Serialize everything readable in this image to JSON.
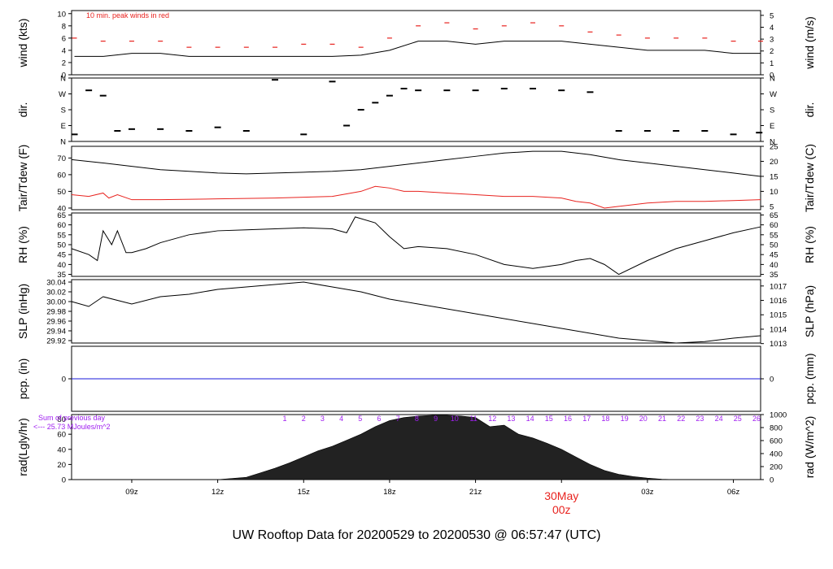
{
  "footer": {
    "title": "UW Rooftop Data for 20200529  to  20200530 @ 06:57:47  (UTC)"
  },
  "colors": {
    "black": "#000000",
    "red": "#e8231f",
    "blue": "#1a1adb",
    "purple": "#a020f0"
  },
  "chart_data": {
    "type": "line",
    "x_axis": {
      "tick_labels": [
        "09z",
        "12z",
        "15z",
        "18z",
        "21z",
        "00z",
        "03z",
        "06z"
      ],
      "tick_hours": [
        9,
        12,
        15,
        18,
        21,
        24,
        27,
        30
      ],
      "range_hours": [
        6.9,
        30.95
      ],
      "date_label": "30May",
      "date_hour_label": "00z"
    },
    "panels": [
      {
        "id": "wind",
        "ylabel": "wind (kts)",
        "ylabel_right": "wind (m/s)",
        "annotation": "10 min. peak winds in red",
        "ylim": [
          0,
          10.5
        ],
        "yticks": [
          "0",
          "2",
          "4",
          "6",
          "8",
          "10"
        ],
        "yticks_right": [
          "0",
          "1",
          "2",
          "3",
          "4",
          "5"
        ],
        "series": [
          {
            "type": "line",
            "color": "black",
            "x": [
              7,
              8,
              9,
              10,
              11,
              12,
              13,
              14,
              15,
              16,
              17,
              18,
              19,
              20,
              21,
              22,
              23,
              24,
              25,
              26,
              27,
              28,
              29,
              30,
              30.95
            ],
            "y": [
              3,
              3,
              3.5,
              3.5,
              3,
              3,
              3,
              3,
              3,
              3,
              3.2,
              4,
              5.5,
              5.5,
              5,
              5.5,
              5.5,
              5.5,
              5,
              4.5,
              4,
              4,
              4,
              3.5,
              3.5
            ]
          },
          {
            "type": "gust",
            "color": "red",
            "x": [
              7,
              8,
              9,
              10,
              11,
              12,
              13,
              14,
              15,
              16,
              17,
              18,
              19,
              20,
              21,
              22,
              23,
              24,
              25,
              26,
              27,
              28,
              29,
              30,
              30.95
            ],
            "y": [
              6,
              5.5,
              5.5,
              5.5,
              4.5,
              4.5,
              4.5,
              4.5,
              5,
              5,
              4.5,
              6,
              8,
              8.5,
              7.5,
              8,
              8.5,
              8,
              7,
              6.5,
              6,
              6,
              6,
              5.5,
              5.5
            ]
          }
        ]
      },
      {
        "id": "dir",
        "ylabel": "dir.",
        "ylabel_right": "dir.",
        "ylim": [
          0,
          360
        ],
        "yticks": [
          "N",
          "E",
          "S",
          "W",
          "N"
        ],
        "series": [
          {
            "type": "segments",
            "color": "black",
            "x": [
              7,
              7.5,
              8,
              8.5,
              9,
              10,
              11,
              12,
              13,
              14,
              15,
              16,
              16.5,
              17,
              17.5,
              18,
              18.5,
              19,
              20,
              21,
              22,
              23,
              24,
              25,
              26,
              27,
              28,
              29,
              30,
              30.9
            ],
            "y": [
              40,
              290,
              260,
              60,
              70,
              70,
              60,
              80,
              60,
              350,
              40,
              340,
              90,
              180,
              220,
              260,
              300,
              290,
              290,
              290,
              300,
              300,
              290,
              280,
              60,
              60,
              60,
              60,
              40,
              50
            ]
          }
        ]
      },
      {
        "id": "temp",
        "ylabel": "Tair/Tdew (F)",
        "ylabel_right": "Tair/Tdew (C)",
        "ylim": [
          39,
          77
        ],
        "yticks": [
          "40",
          "50",
          "60",
          "70"
        ],
        "yticks_right": [
          "5",
          "10",
          "15",
          "20",
          "25"
        ],
        "series": [
          {
            "name": "Tair",
            "color": "black",
            "x": [
              6.9,
              8,
              9,
              10,
              11,
              12,
              13,
              14,
              15,
              16,
              17,
              18,
              19,
              20,
              21,
              22,
              23,
              24,
              25,
              26,
              27,
              28,
              29,
              30,
              30.95
            ],
            "y": [
              69,
              67,
              65,
              63,
              62,
              61,
              60.5,
              61,
              61.5,
              62,
              63,
              65,
              67,
              69,
              71,
              73,
              74,
              74,
              72,
              69,
              67,
              65,
              63,
              61,
              59
            ]
          },
          {
            "name": "Tdew",
            "color": "red",
            "x": [
              6.9,
              7.5,
              8,
              8.2,
              8.5,
              9,
              10,
              12,
              14,
              16,
              17,
              17.5,
              18,
              18.5,
              19,
              20,
              21,
              22,
              23,
              24,
              24.5,
              25,
              25.5,
              26,
              27,
              28,
              29,
              30,
              30.95
            ],
            "y": [
              48,
              47,
              49,
              46,
              48,
              45,
              45,
              45.5,
              46,
              47,
              50,
              53,
              52,
              50,
              50,
              49,
              48,
              47,
              47,
              46,
              44,
              43,
              40,
              41,
              43,
              44,
              44,
              44.5,
              45
            ]
          }
        ]
      },
      {
        "id": "rh",
        "ylabel": "RH (%)",
        "ylabel_right": "RH (%)",
        "ylim": [
          34,
          66
        ],
        "yticks": [
          "35",
          "40",
          "45",
          "50",
          "55",
          "60",
          "65"
        ],
        "yticks_right": [
          "35",
          "40",
          "45",
          "50",
          "55",
          "60",
          "65"
        ],
        "series": [
          {
            "name": "RH",
            "color": "black",
            "x": [
              6.9,
              7.5,
              7.8,
              8,
              8.3,
              8.5,
              8.8,
              9,
              9.5,
              10,
              11,
              12,
              13,
              14,
              15,
              16,
              16.5,
              16.8,
              17.5,
              18,
              18.5,
              19,
              20,
              21,
              22,
              23,
              24,
              24.5,
              25,
              25.5,
              26,
              27,
              28,
              29,
              30,
              30.95
            ],
            "y": [
              48,
              45,
              42,
              57,
              50,
              57,
              46,
              46,
              48,
              51,
              55,
              57,
              57.5,
              58,
              58.5,
              58,
              56,
              64,
              61,
              54,
              48,
              49,
              48,
              45,
              40,
              38,
              40,
              42,
              43,
              40,
              35,
              42,
              48,
              52,
              56,
              59
            ]
          }
        ]
      },
      {
        "id": "slp",
        "ylabel": "SLP (inHg)",
        "ylabel_right": "SLP (hPa)",
        "ylim": [
          29.915,
          30.045
        ],
        "yticks": [
          "29.92",
          "29.94",
          "29.96",
          "29.98",
          "30.00",
          "30.02",
          "30.04"
        ],
        "yticks_right": [
          "1013",
          "1014",
          "1015",
          "1016",
          "1017"
        ],
        "series": [
          {
            "name": "SLP",
            "color": "black",
            "x": [
              6.9,
              7.5,
              8,
              9,
              10,
              11,
              12,
              13,
              14,
              15,
              16,
              17,
              18,
              19,
              20,
              21,
              22,
              23,
              24,
              25,
              26,
              27,
              28,
              29,
              30,
              30.95
            ],
            "y": [
              30.0,
              29.99,
              30.01,
              29.995,
              30.01,
              30.015,
              30.025,
              30.03,
              30.035,
              30.04,
              30.03,
              30.02,
              30.005,
              29.995,
              29.985,
              29.975,
              29.965,
              29.955,
              29.945,
              29.935,
              29.925,
              29.92,
              29.915,
              29.918,
              29.925,
              29.93
            ]
          }
        ]
      },
      {
        "id": "pcp",
        "ylabel": "pcp. (in)",
        "ylabel_right": "pcp. (mm)",
        "ylim": [
          -1,
          1
        ],
        "yticks": [
          "0"
        ],
        "yticks_right": [
          "0"
        ],
        "series": [
          {
            "name": "pcp",
            "color": "blue",
            "x": [
              6.9,
              30.95
            ],
            "y": [
              0,
              0
            ]
          }
        ]
      },
      {
        "id": "rad",
        "ylabel": "rad(Lgly/hr)",
        "ylabel_right": "rad (W/m^2)",
        "ylim": [
          0,
          86
        ],
        "yticks": [
          "0",
          "20",
          "40",
          "60",
          "80"
        ],
        "yticks_right": [
          "0",
          "200",
          "400",
          "600",
          "800",
          "1000"
        ],
        "note": [
          "Sum of previous day",
          "<--- 25.73 MJoules/m^2"
        ],
        "hour_labels": [
          "1",
          "2",
          "3",
          "4",
          "5",
          "6",
          "7",
          "8",
          "9",
          "10",
          "11",
          "12",
          "13",
          "14",
          "15",
          "16",
          "17",
          "18",
          "19",
          "20",
          "21",
          "22",
          "23",
          "24",
          "25",
          "26"
        ],
        "series": [
          {
            "type": "area",
            "color": "black",
            "x": [
              12,
              13,
              13.5,
              14,
              14.5,
              15,
              15.5,
              16,
              16.5,
              17,
              17.5,
              18,
              18.5,
              19,
              19.5,
              20,
              20.5,
              21,
              21.5,
              22,
              22.5,
              23,
              23.5,
              24,
              24.5,
              25,
              25.5,
              26,
              26.5,
              27,
              27.5,
              28
            ],
            "y": [
              0,
              3,
              9,
              15,
              22,
              30,
              38,
              44,
              52,
              60,
              70,
              78,
              82,
              84,
              85,
              85,
              84,
              82,
              70,
              72,
              60,
              55,
              48,
              40,
              30,
              20,
              12,
              7,
              4,
              2,
              0.5,
              0
            ]
          }
        ]
      }
    ]
  }
}
